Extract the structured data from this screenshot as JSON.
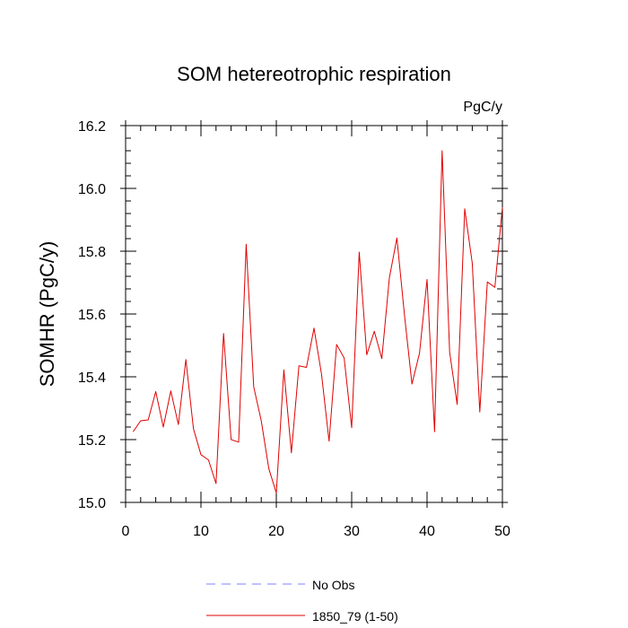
{
  "chart_data": {
    "type": "line",
    "title": "SOM hetereotrophic respiration",
    "units": "PgC/y",
    "xlabel": "",
    "ylabel": "SOMHR  (PgC/y)",
    "xlim": [
      0,
      50
    ],
    "ylim": [
      15.0,
      16.2
    ],
    "x_ticks": [
      0,
      10,
      20,
      30,
      40,
      50
    ],
    "y_ticks": [
      15.0,
      15.2,
      15.4,
      15.6,
      15.8,
      16.0,
      16.2
    ],
    "x_tick_labels": [
      "0",
      "10",
      "20",
      "30",
      "40",
      "50"
    ],
    "y_tick_labels": [
      "15.0",
      "15.2",
      "15.4",
      "15.6",
      "15.8",
      "16.0",
      "16.2"
    ],
    "grid": false,
    "legend_position": "bottom-center",
    "series": [
      {
        "name": "No Obs",
        "color": "#8080ff",
        "dash": "dashed",
        "x": [],
        "values": []
      },
      {
        "name": "1850_79 (1-50)",
        "color": "#e00000",
        "dash": "solid",
        "x": [
          1,
          2,
          3,
          4,
          5,
          6,
          7,
          8,
          9,
          10,
          11,
          12,
          13,
          14,
          15,
          16,
          17,
          18,
          19,
          20,
          21,
          22,
          23,
          24,
          25,
          26,
          27,
          28,
          29,
          30,
          31,
          32,
          33,
          34,
          35,
          36,
          37,
          38,
          39,
          40,
          41,
          42,
          43,
          44,
          45,
          46,
          47,
          48,
          49,
          50
        ],
        "values": [
          15.225,
          15.26,
          15.263,
          15.353,
          15.24,
          15.355,
          15.248,
          15.455,
          15.235,
          15.152,
          15.135,
          15.06,
          15.538,
          15.2,
          15.192,
          15.822,
          15.368,
          15.26,
          15.108,
          15.03,
          15.422,
          15.158,
          15.435,
          15.43,
          15.555,
          15.408,
          15.195,
          15.503,
          15.46,
          15.238,
          15.797,
          15.47,
          15.545,
          15.458,
          15.715,
          15.842,
          15.598,
          15.377,
          15.475,
          15.71,
          15.225,
          16.12,
          15.478,
          15.312,
          15.935,
          15.762,
          15.288,
          15.702,
          15.685,
          15.94
        ]
      }
    ]
  }
}
